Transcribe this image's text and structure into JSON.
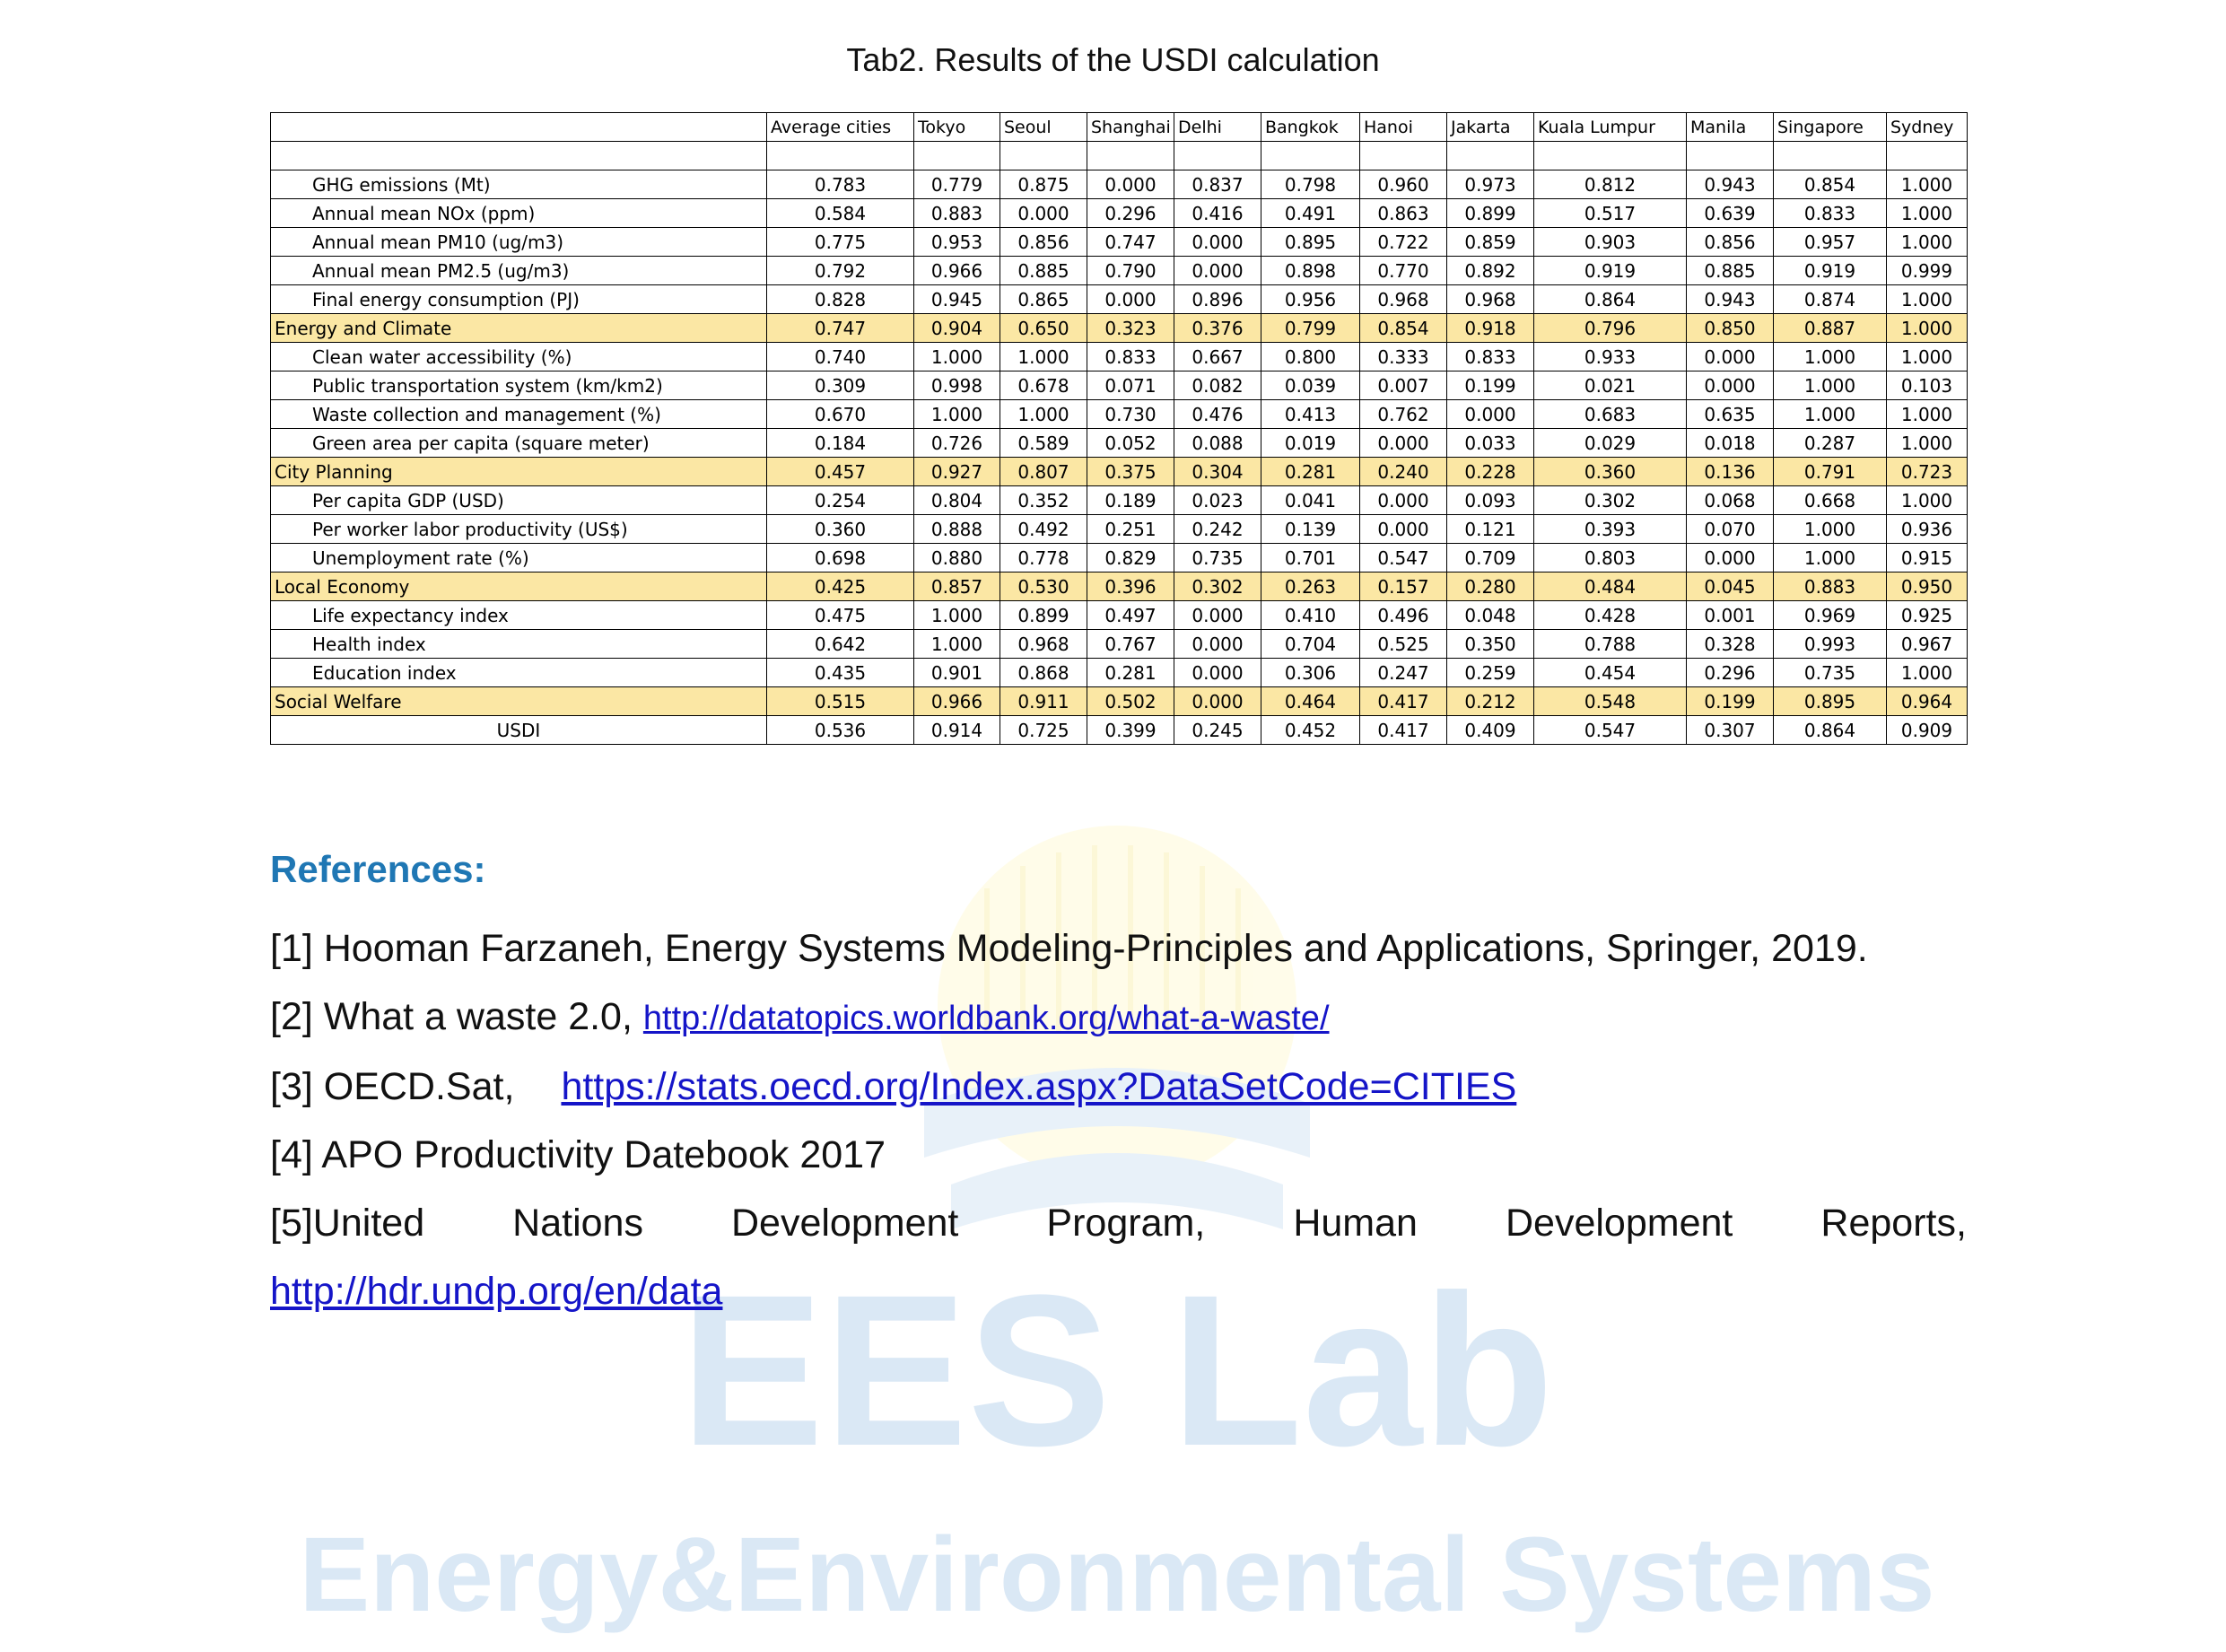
{
  "title": "Tab2. Results of the USDI calculation",
  "table": {
    "columns": [
      "",
      "Average cities",
      "Tokyo",
      "Seoul",
      "Shanghai",
      "Delhi",
      "Bangkok",
      "Hanoi",
      "Jakarta",
      "Kuala Lumpur",
      "Manila",
      "Singapore",
      "Sydney"
    ],
    "rows": [
      {
        "type": "item",
        "label": "GHG emissions (Mt)",
        "values": [
          "0.783",
          "0.779",
          "0.875",
          "0.000",
          "0.837",
          "0.798",
          "0.960",
          "0.973",
          "0.812",
          "0.943",
          "0.854",
          "1.000"
        ]
      },
      {
        "type": "item",
        "label": "Annual mean NOx (ppm)",
        "values": [
          "0.584",
          "0.883",
          "0.000",
          "0.296",
          "0.416",
          "0.491",
          "0.863",
          "0.899",
          "0.517",
          "0.639",
          "0.833",
          "1.000"
        ]
      },
      {
        "type": "item",
        "label": "Annual mean PM10 (ug/m3)",
        "values": [
          "0.775",
          "0.953",
          "0.856",
          "0.747",
          "0.000",
          "0.895",
          "0.722",
          "0.859",
          "0.903",
          "0.856",
          "0.957",
          "1.000"
        ]
      },
      {
        "type": "item",
        "label": "Annual mean PM2.5 (ug/m3)",
        "values": [
          "0.792",
          "0.966",
          "0.885",
          "0.790",
          "0.000",
          "0.898",
          "0.770",
          "0.892",
          "0.919",
          "0.885",
          "0.919",
          "0.999"
        ]
      },
      {
        "type": "item",
        "label": "Final energy consumption (PJ)",
        "values": [
          "0.828",
          "0.945",
          "0.865",
          "0.000",
          "0.896",
          "0.956",
          "0.968",
          "0.968",
          "0.864",
          "0.943",
          "0.874",
          "1.000"
        ]
      },
      {
        "type": "category",
        "label": "Energy and Climate",
        "values": [
          "0.747",
          "0.904",
          "0.650",
          "0.323",
          "0.376",
          "0.799",
          "0.854",
          "0.918",
          "0.796",
          "0.850",
          "0.887",
          "1.000"
        ]
      },
      {
        "type": "item",
        "label": "Clean water accessibility (%)",
        "values": [
          "0.740",
          "1.000",
          "1.000",
          "0.833",
          "0.667",
          "0.800",
          "0.333",
          "0.833",
          "0.933",
          "0.000",
          "1.000",
          "1.000"
        ]
      },
      {
        "type": "item",
        "label": "Public transportation system (km/km2)",
        "values": [
          "0.309",
          "0.998",
          "0.678",
          "0.071",
          "0.082",
          "0.039",
          "0.007",
          "0.199",
          "0.021",
          "0.000",
          "1.000",
          "0.103"
        ]
      },
      {
        "type": "item",
        "label": "Waste collection and management (%)",
        "values": [
          "0.670",
          "1.000",
          "1.000",
          "0.730",
          "0.476",
          "0.413",
          "0.762",
          "0.000",
          "0.683",
          "0.635",
          "1.000",
          "1.000"
        ]
      },
      {
        "type": "item",
        "label": "Green area per capita (square meter)",
        "values": [
          "0.184",
          "0.726",
          "0.589",
          "0.052",
          "0.088",
          "0.019",
          "0.000",
          "0.033",
          "0.029",
          "0.018",
          "0.287",
          "1.000"
        ]
      },
      {
        "type": "category",
        "label": "City Planning",
        "values": [
          "0.457",
          "0.927",
          "0.807",
          "0.375",
          "0.304",
          "0.281",
          "0.240",
          "0.228",
          "0.360",
          "0.136",
          "0.791",
          "0.723"
        ]
      },
      {
        "type": "item",
        "label": "Per capita GDP (USD)",
        "values": [
          "0.254",
          "0.804",
          "0.352",
          "0.189",
          "0.023",
          "0.041",
          "0.000",
          "0.093",
          "0.302",
          "0.068",
          "0.668",
          "1.000"
        ]
      },
      {
        "type": "item",
        "label": "Per worker labor productivity (US$)",
        "values": [
          "0.360",
          "0.888",
          "0.492",
          "0.251",
          "0.242",
          "0.139",
          "0.000",
          "0.121",
          "0.393",
          "0.070",
          "1.000",
          "0.936"
        ]
      },
      {
        "type": "item",
        "label": "Unemployment rate (%)",
        "values": [
          "0.698",
          "0.880",
          "0.778",
          "0.829",
          "0.735",
          "0.701",
          "0.547",
          "0.709",
          "0.803",
          "0.000",
          "1.000",
          "0.915"
        ]
      },
      {
        "type": "category",
        "label": "Local Economy",
        "values": [
          "0.425",
          "0.857",
          "0.530",
          "0.396",
          "0.302",
          "0.263",
          "0.157",
          "0.280",
          "0.484",
          "0.045",
          "0.883",
          "0.950"
        ]
      },
      {
        "type": "item",
        "label": "Life expectancy index",
        "values": [
          "0.475",
          "1.000",
          "0.899",
          "0.497",
          "0.000",
          "0.410",
          "0.496",
          "0.048",
          "0.428",
          "0.001",
          "0.969",
          "0.925"
        ]
      },
      {
        "type": "item",
        "label": "Health index",
        "values": [
          "0.642",
          "1.000",
          "0.968",
          "0.767",
          "0.000",
          "0.704",
          "0.525",
          "0.350",
          "0.788",
          "0.328",
          "0.993",
          "0.967"
        ]
      },
      {
        "type": "item",
        "label": "Education index",
        "values": [
          "0.435",
          "0.901",
          "0.868",
          "0.281",
          "0.000",
          "0.306",
          "0.247",
          "0.259",
          "0.454",
          "0.296",
          "0.735",
          "1.000"
        ]
      },
      {
        "type": "category",
        "label": "Social Welfare",
        "values": [
          "0.515",
          "0.966",
          "0.911",
          "0.502",
          "0.000",
          "0.464",
          "0.417",
          "0.212",
          "0.548",
          "0.199",
          "0.895",
          "0.964"
        ]
      },
      {
        "type": "total",
        "label": "USDI",
        "values": [
          "0.536",
          "0.914",
          "0.725",
          "0.399",
          "0.245",
          "0.452",
          "0.417",
          "0.409",
          "0.547",
          "0.307",
          "0.864",
          "0.909"
        ]
      }
    ]
  },
  "references": {
    "heading": "References:",
    "ref1": "[1] Hooman Farzaneh, Energy Systems Modeling-Principles and Applications, Springer, 2019.",
    "ref2_text": "[2] What a waste 2.0, ",
    "ref2_link": "http://datatopics.worldbank.org/what-a-waste/",
    "ref3_text": "[3] OECD.Sat,",
    "ref3_link": "https://stats.oecd.org/Index.aspx?DataSetCode=CITIES",
    "ref4": "[4] APO Productivity Datebook 2017",
    "ref5_words": [
      "[5]United",
      "Nations",
      "Development",
      "Program,",
      "Human",
      "Development",
      "Reports,"
    ],
    "ref5_link": "http://hdr.undp.org/en/data"
  },
  "watermark": {
    "line1": "EES Lab",
    "line2": "Energy&Environmental Systems",
    "color": "#5b9bd5"
  }
}
